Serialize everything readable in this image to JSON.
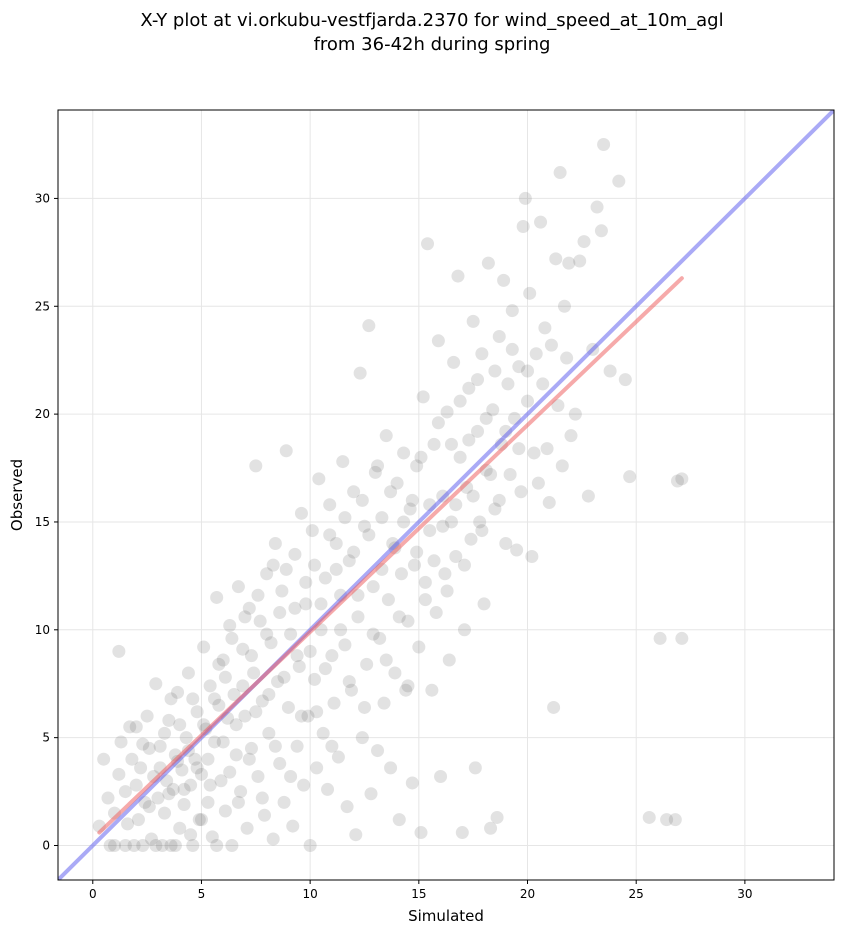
{
  "chart_data": {
    "type": "scatter",
    "title_line1": "X-Y plot at vi.orkubu-vestfjarda.2370 for wind_speed_at_10m_agl",
    "title_line2": "from 36-42h during spring",
    "xlabel": "Simulated",
    "ylabel": "Observed",
    "xlim": [
      -1.6,
      34.1
    ],
    "ylim": [
      -1.6,
      34.1
    ],
    "xticks": [
      0,
      5,
      10,
      15,
      20,
      25,
      30
    ],
    "yticks": [
      0,
      5,
      10,
      15,
      20,
      25,
      30
    ],
    "grid": true,
    "point_color": "#555555",
    "identity_line": {
      "color": "#5555ee",
      "x": [
        -1.6,
        34.1
      ],
      "y": [
        -1.6,
        34.1
      ]
    },
    "fit_line": {
      "color": "#ee5555",
      "x": [
        0.3,
        27.1
      ],
      "y": [
        0.6,
        26.3
      ]
    },
    "points": [
      [
        0.3,
        0.9
      ],
      [
        0.5,
        4.0
      ],
      [
        0.7,
        2.2
      ],
      [
        0.8,
        0.0
      ],
      [
        1.0,
        1.5
      ],
      [
        1.2,
        3.3
      ],
      [
        1.2,
        9.0
      ],
      [
        1.3,
        4.8
      ],
      [
        1.5,
        0.0
      ],
      [
        1.5,
        2.5
      ],
      [
        1.7,
        5.5
      ],
      [
        1.8,
        4.0
      ],
      [
        1.9,
        0.0
      ],
      [
        2.0,
        5.5
      ],
      [
        2.1,
        1.2
      ],
      [
        2.2,
        3.6
      ],
      [
        2.3,
        0.0
      ],
      [
        2.4,
        2.0
      ],
      [
        2.5,
        6.0
      ],
      [
        2.6,
        4.5
      ],
      [
        2.7,
        0.3
      ],
      [
        2.8,
        3.2
      ],
      [
        2.9,
        7.5
      ],
      [
        3.0,
        2.2
      ],
      [
        3.1,
        4.6
      ],
      [
        3.2,
        0.0
      ],
      [
        3.3,
        1.5
      ],
      [
        3.4,
        3.0
      ],
      [
        3.5,
        5.8
      ],
      [
        3.6,
        0.0
      ],
      [
        3.7,
        2.6
      ],
      [
        3.8,
        4.2
      ],
      [
        3.9,
        7.1
      ],
      [
        4.0,
        0.8
      ],
      [
        4.1,
        3.5
      ],
      [
        4.2,
        1.9
      ],
      [
        4.3,
        5.0
      ],
      [
        4.4,
        8.0
      ],
      [
        4.5,
        2.8
      ],
      [
        4.6,
        0.0
      ],
      [
        4.7,
        4.0
      ],
      [
        4.8,
        6.2
      ],
      [
        4.9,
        1.2
      ],
      [
        5.0,
        3.3
      ],
      [
        5.1,
        9.2
      ],
      [
        5.2,
        5.4
      ],
      [
        5.3,
        2.0
      ],
      [
        5.4,
        7.4
      ],
      [
        5.5,
        0.4
      ],
      [
        5.6,
        4.8
      ],
      [
        5.7,
        11.5
      ],
      [
        5.8,
        6.5
      ],
      [
        5.9,
        3.0
      ],
      [
        6.0,
        8.6
      ],
      [
        6.1,
        1.6
      ],
      [
        6.2,
        5.9
      ],
      [
        6.3,
        10.2
      ],
      [
        6.4,
        0.0
      ],
      [
        6.5,
        7.0
      ],
      [
        6.6,
        4.2
      ],
      [
        6.7,
        12.0
      ],
      [
        6.8,
        2.5
      ],
      [
        6.9,
        9.1
      ],
      [
        7.0,
        6.0
      ],
      [
        7.1,
        0.8
      ],
      [
        7.2,
        11.0
      ],
      [
        7.3,
        4.5
      ],
      [
        7.4,
        8.0
      ],
      [
        7.5,
        17.6
      ],
      [
        7.6,
        3.2
      ],
      [
        7.7,
        10.4
      ],
      [
        7.8,
        6.7
      ],
      [
        7.9,
        1.4
      ],
      [
        8.0,
        12.6
      ],
      [
        8.1,
        5.2
      ],
      [
        8.2,
        9.4
      ],
      [
        8.3,
        0.3
      ],
      [
        8.4,
        14.0
      ],
      [
        8.5,
        7.6
      ],
      [
        8.6,
        3.8
      ],
      [
        8.7,
        11.8
      ],
      [
        8.8,
        2.0
      ],
      [
        8.9,
        18.3
      ],
      [
        9.0,
        6.4
      ],
      [
        9.1,
        9.8
      ],
      [
        9.2,
        0.9
      ],
      [
        9.3,
        13.5
      ],
      [
        9.4,
        4.6
      ],
      [
        9.5,
        8.3
      ],
      [
        9.6,
        15.4
      ],
      [
        9.7,
        2.8
      ],
      [
        9.8,
        11.2
      ],
      [
        9.9,
        6.0
      ],
      [
        10.0,
        0.0
      ],
      [
        10.1,
        14.6
      ],
      [
        10.2,
        7.7
      ],
      [
        10.3,
        3.6
      ],
      [
        10.4,
        17.0
      ],
      [
        10.5,
        10.0
      ],
      [
        10.6,
        5.2
      ],
      [
        10.7,
        12.4
      ],
      [
        10.8,
        2.6
      ],
      [
        10.9,
        15.8
      ],
      [
        11.0,
        8.8
      ],
      [
        11.1,
        6.6
      ],
      [
        11.2,
        14.0
      ],
      [
        11.3,
        4.1
      ],
      [
        11.4,
        11.6
      ],
      [
        11.5,
        17.8
      ],
      [
        11.6,
        9.3
      ],
      [
        11.7,
        1.8
      ],
      [
        11.8,
        13.2
      ],
      [
        11.9,
        7.2
      ],
      [
        12.0,
        16.4
      ],
      [
        12.1,
        0.5
      ],
      [
        12.2,
        10.6
      ],
      [
        12.3,
        21.9
      ],
      [
        12.4,
        5.0
      ],
      [
        12.5,
        14.8
      ],
      [
        12.6,
        8.4
      ],
      [
        12.7,
        24.1
      ],
      [
        12.8,
        2.4
      ],
      [
        12.9,
        12.0
      ],
      [
        13.0,
        17.3
      ],
      [
        13.1,
        4.4
      ],
      [
        13.2,
        9.6
      ],
      [
        13.3,
        15.2
      ],
      [
        13.4,
        6.6
      ],
      [
        13.5,
        19.0
      ],
      [
        13.6,
        11.4
      ],
      [
        13.7,
        3.6
      ],
      [
        13.8,
        14.0
      ],
      [
        13.9,
        8.0
      ],
      [
        14.0,
        16.8
      ],
      [
        14.1,
        1.2
      ],
      [
        14.2,
        12.6
      ],
      [
        14.3,
        18.2
      ],
      [
        14.4,
        7.2
      ],
      [
        14.5,
        10.4
      ],
      [
        14.6,
        15.6
      ],
      [
        14.7,
        2.9
      ],
      [
        14.8,
        13.0
      ],
      [
        14.9,
        17.6
      ],
      [
        15.0,
        9.2
      ],
      [
        15.1,
        0.6
      ],
      [
        15.2,
        20.8
      ],
      [
        15.3,
        12.2
      ],
      [
        15.4,
        27.9
      ],
      [
        15.5,
        14.6
      ],
      [
        15.6,
        7.2
      ],
      [
        15.7,
        18.6
      ],
      [
        15.8,
        10.8
      ],
      [
        15.9,
        23.4
      ],
      [
        16.0,
        3.2
      ],
      [
        16.1,
        16.2
      ],
      [
        16.2,
        12.6
      ],
      [
        16.3,
        20.1
      ],
      [
        16.4,
        8.6
      ],
      [
        16.5,
        15.0
      ],
      [
        16.6,
        22.4
      ],
      [
        16.7,
        13.4
      ],
      [
        16.8,
        26.4
      ],
      [
        16.9,
        18.0
      ],
      [
        17.0,
        0.6
      ],
      [
        17.1,
        10.0
      ],
      [
        17.2,
        16.6
      ],
      [
        17.3,
        21.2
      ],
      [
        17.4,
        14.2
      ],
      [
        17.5,
        24.3
      ],
      [
        17.6,
        3.6
      ],
      [
        17.7,
        19.2
      ],
      [
        17.8,
        15.0
      ],
      [
        17.9,
        22.8
      ],
      [
        18.0,
        11.2
      ],
      [
        18.1,
        17.4
      ],
      [
        18.2,
        27.0
      ],
      [
        18.3,
        0.8
      ],
      [
        18.4,
        20.2
      ],
      [
        18.5,
        15.6
      ],
      [
        18.6,
        1.3
      ],
      [
        18.7,
        23.6
      ],
      [
        18.8,
        18.6
      ],
      [
        18.9,
        26.2
      ],
      [
        19.0,
        14.0
      ],
      [
        19.1,
        21.4
      ],
      [
        19.2,
        17.2
      ],
      [
        19.3,
        24.8
      ],
      [
        19.4,
        19.8
      ],
      [
        19.5,
        13.7
      ],
      [
        19.6,
        22.2
      ],
      [
        19.7,
        16.4
      ],
      [
        19.8,
        28.7
      ],
      [
        19.9,
        30.0
      ],
      [
        20.0,
        20.6
      ],
      [
        20.1,
        25.6
      ],
      [
        20.2,
        13.4
      ],
      [
        20.3,
        18.2
      ],
      [
        20.4,
        22.8
      ],
      [
        20.5,
        16.8
      ],
      [
        20.6,
        28.9
      ],
      [
        20.7,
        21.4
      ],
      [
        20.8,
        24.0
      ],
      [
        20.9,
        18.4
      ],
      [
        21.0,
        15.9
      ],
      [
        21.1,
        23.2
      ],
      [
        21.2,
        6.4
      ],
      [
        21.3,
        27.2
      ],
      [
        21.4,
        20.4
      ],
      [
        21.5,
        31.2
      ],
      [
        21.6,
        17.6
      ],
      [
        21.7,
        25.0
      ],
      [
        21.8,
        22.6
      ],
      [
        21.9,
        27.0
      ],
      [
        22.0,
        19.0
      ],
      [
        22.2,
        20.0
      ],
      [
        22.4,
        27.1
      ],
      [
        22.6,
        28.0
      ],
      [
        22.8,
        16.2
      ],
      [
        23.0,
        23.0
      ],
      [
        23.2,
        29.6
      ],
      [
        23.4,
        28.5
      ],
      [
        23.5,
        32.5
      ],
      [
        23.8,
        22.0
      ],
      [
        24.2,
        30.8
      ],
      [
        24.5,
        21.6
      ],
      [
        24.7,
        17.1
      ],
      [
        25.6,
        1.3
      ],
      [
        26.1,
        9.6
      ],
      [
        26.4,
        1.2
      ],
      [
        26.8,
        1.2
      ],
      [
        26.9,
        16.9
      ],
      [
        27.1,
        17.0
      ],
      [
        27.1,
        9.6
      ],
      [
        1.0,
        0.0
      ],
      [
        1.6,
        1.0
      ],
      [
        2.0,
        2.8
      ],
      [
        2.3,
        4.7
      ],
      [
        2.6,
        1.8
      ],
      [
        2.9,
        0.0
      ],
      [
        3.1,
        3.6
      ],
      [
        3.3,
        5.2
      ],
      [
        3.5,
        2.4
      ],
      [
        3.6,
        6.8
      ],
      [
        3.8,
        0.0
      ],
      [
        3.9,
        3.9
      ],
      [
        4.0,
        5.6
      ],
      [
        4.2,
        2.6
      ],
      [
        4.4,
        4.4
      ],
      [
        4.5,
        0.5
      ],
      [
        4.6,
        6.8
      ],
      [
        4.8,
        3.6
      ],
      [
        5.0,
        1.2
      ],
      [
        5.1,
        5.6
      ],
      [
        5.3,
        4.0
      ],
      [
        5.4,
        2.8
      ],
      [
        5.6,
        6.8
      ],
      [
        5.7,
        0.0
      ],
      [
        5.8,
        8.4
      ],
      [
        6.0,
        4.8
      ],
      [
        6.1,
        7.8
      ],
      [
        6.3,
        3.4
      ],
      [
        6.4,
        9.6
      ],
      [
        6.6,
        5.6
      ],
      [
        6.7,
        2.0
      ],
      [
        6.9,
        7.4
      ],
      [
        7.0,
        10.6
      ],
      [
        7.2,
        4.0
      ],
      [
        7.3,
        8.8
      ],
      [
        7.5,
        6.2
      ],
      [
        7.6,
        11.6
      ],
      [
        7.8,
        2.2
      ],
      [
        8.0,
        9.8
      ],
      [
        8.1,
        7.0
      ],
      [
        8.3,
        13.0
      ],
      [
        8.4,
        4.6
      ],
      [
        8.6,
        10.8
      ],
      [
        8.8,
        7.8
      ],
      [
        8.9,
        12.8
      ],
      [
        9.1,
        3.2
      ],
      [
        9.3,
        11.0
      ],
      [
        9.4,
        8.8
      ],
      [
        9.6,
        6.0
      ],
      [
        9.8,
        12.2
      ],
      [
        10.0,
        9.0
      ],
      [
        10.2,
        13.0
      ],
      [
        10.3,
        6.2
      ],
      [
        10.5,
        11.2
      ],
      [
        10.7,
        8.2
      ],
      [
        10.9,
        14.4
      ],
      [
        11.0,
        4.6
      ],
      [
        11.2,
        12.8
      ],
      [
        11.4,
        10.0
      ],
      [
        11.6,
        15.2
      ],
      [
        11.8,
        7.6
      ],
      [
        12.0,
        13.6
      ],
      [
        12.2,
        11.6
      ],
      [
        12.4,
        16.0
      ],
      [
        12.5,
        6.4
      ],
      [
        12.7,
        14.4
      ],
      [
        12.9,
        9.8
      ],
      [
        13.1,
        17.6
      ],
      [
        13.3,
        12.8
      ],
      [
        13.5,
        8.6
      ],
      [
        13.7,
        16.4
      ],
      [
        13.9,
        13.8
      ],
      [
        14.1,
        10.6
      ],
      [
        14.3,
        15.0
      ],
      [
        14.5,
        7.4
      ],
      [
        14.7,
        16.0
      ],
      [
        14.9,
        13.6
      ],
      [
        15.1,
        18.0
      ],
      [
        15.3,
        11.4
      ],
      [
        15.5,
        15.8
      ],
      [
        15.7,
        13.2
      ],
      [
        15.9,
        19.6
      ],
      [
        16.1,
        14.8
      ],
      [
        16.3,
        11.8
      ],
      [
        16.5,
        18.6
      ],
      [
        16.7,
        15.8
      ],
      [
        16.9,
        20.6
      ],
      [
        17.1,
        13.0
      ],
      [
        17.3,
        18.8
      ],
      [
        17.5,
        16.2
      ],
      [
        17.7,
        21.6
      ],
      [
        17.9,
        14.6
      ],
      [
        18.1,
        19.8
      ],
      [
        18.3,
        17.2
      ],
      [
        18.5,
        22.0
      ],
      [
        18.7,
        16.0
      ],
      [
        19.0,
        19.2
      ],
      [
        19.3,
        23.0
      ],
      [
        19.6,
        18.4
      ],
      [
        20.0,
        22.0
      ]
    ]
  }
}
